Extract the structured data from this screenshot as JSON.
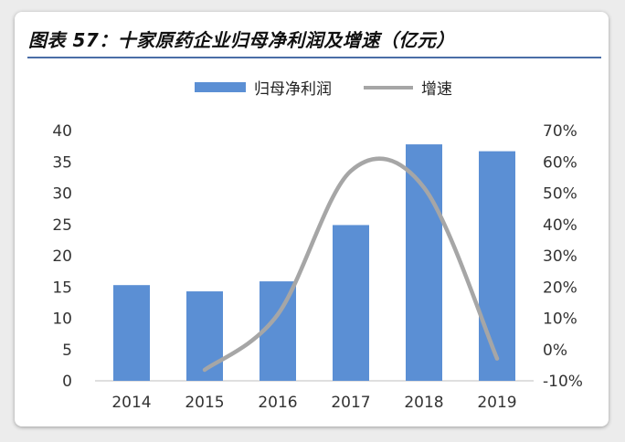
{
  "header": {
    "title": "图表 57：十家原药企业归母净利润及增速（亿元）"
  },
  "colors": {
    "bar": "#5b8fd4",
    "line": "#a6a6a6",
    "rule": "#4a6da7"
  },
  "chart_data": {
    "type": "bar",
    "title": "",
    "categories": [
      "2014",
      "2015",
      "2016",
      "2017",
      "2018",
      "2019"
    ],
    "series": [
      {
        "name": "归母净利润",
        "type": "bar",
        "axis": "left",
        "values": [
          15.3,
          14.3,
          15.9,
          24.9,
          37.8,
          36.7
        ]
      },
      {
        "name": "增速",
        "type": "line",
        "smooth": true,
        "axis": "right",
        "values": [
          null,
          -6.5,
          11.2,
          57.1,
          51.8,
          -2.9
        ]
      }
    ],
    "left_axis": {
      "min": 0,
      "max": 40,
      "ticks": [
        "0",
        "5",
        "10",
        "15",
        "20",
        "25",
        "30",
        "35",
        "40"
      ]
    },
    "right_axis": {
      "min": -10,
      "max": 70,
      "ticks": [
        "-10%",
        "0%",
        "10%",
        "20%",
        "30%",
        "40%",
        "50%",
        "60%",
        "70%"
      ]
    },
    "legend_position": "top-center",
    "grid": false
  }
}
